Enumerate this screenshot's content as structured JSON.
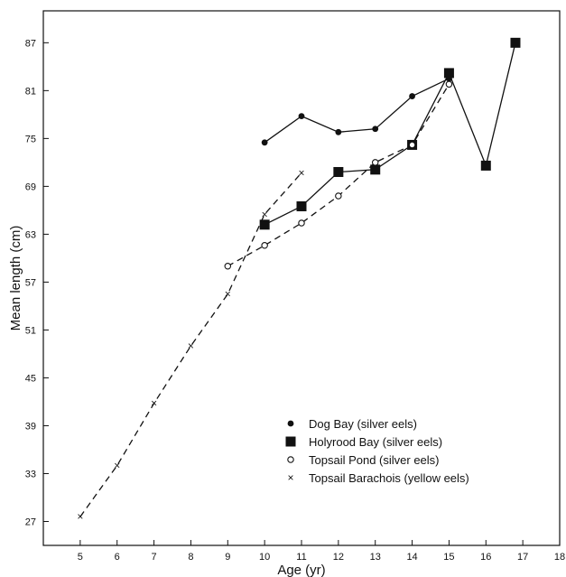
{
  "chart_data": {
    "type": "line",
    "xlabel": "Age (yr)",
    "ylabel": "Mean length (cm)",
    "xlim": [
      4,
      18
    ],
    "ylim": [
      24,
      91
    ],
    "xticks": [
      5,
      6,
      7,
      8,
      9,
      10,
      11,
      12,
      13,
      14,
      15,
      16,
      17,
      18
    ],
    "yticks": [
      27,
      33,
      39,
      45,
      51,
      57,
      63,
      69,
      75,
      81,
      87
    ],
    "legend_position": "bottom-right",
    "series": [
      {
        "name": "Dog Bay (silver eels)",
        "marker": "filled-circle",
        "line": "solid",
        "points": [
          [
            10,
            74.5
          ],
          [
            11,
            77.8
          ],
          [
            12,
            75.8
          ],
          [
            13,
            76.2
          ],
          [
            14,
            80.3
          ],
          [
            15,
            82.5
          ]
        ]
      },
      {
        "name": "Holyrood Bay (silver eels)",
        "marker": "filled-square",
        "line": "solid",
        "points": [
          [
            10,
            64.2
          ],
          [
            11,
            66.5
          ],
          [
            12,
            70.8
          ],
          [
            13,
            71.1
          ],
          [
            14,
            74.2
          ],
          [
            15,
            83.2
          ],
          [
            16,
            71.6
          ],
          [
            16.8,
            87
          ]
        ]
      },
      {
        "name": "Topsail Pond (silver eels)",
        "marker": "open-circle",
        "line": "dashed",
        "points": [
          [
            9,
            59
          ],
          [
            10,
            61.6
          ],
          [
            11,
            64.4
          ],
          [
            12,
            67.8
          ],
          [
            13,
            72
          ],
          [
            14,
            74.2
          ],
          [
            15,
            81.8
          ]
        ]
      },
      {
        "name": "Topsail Barachois (yellow eels)",
        "marker": "x",
        "line": "dashed",
        "points": [
          [
            5,
            27.6
          ],
          [
            6,
            34
          ],
          [
            7,
            41.8
          ],
          [
            8,
            49
          ],
          [
            9,
            55.5
          ],
          [
            10,
            65.5
          ],
          [
            11,
            70.7
          ]
        ]
      }
    ]
  }
}
